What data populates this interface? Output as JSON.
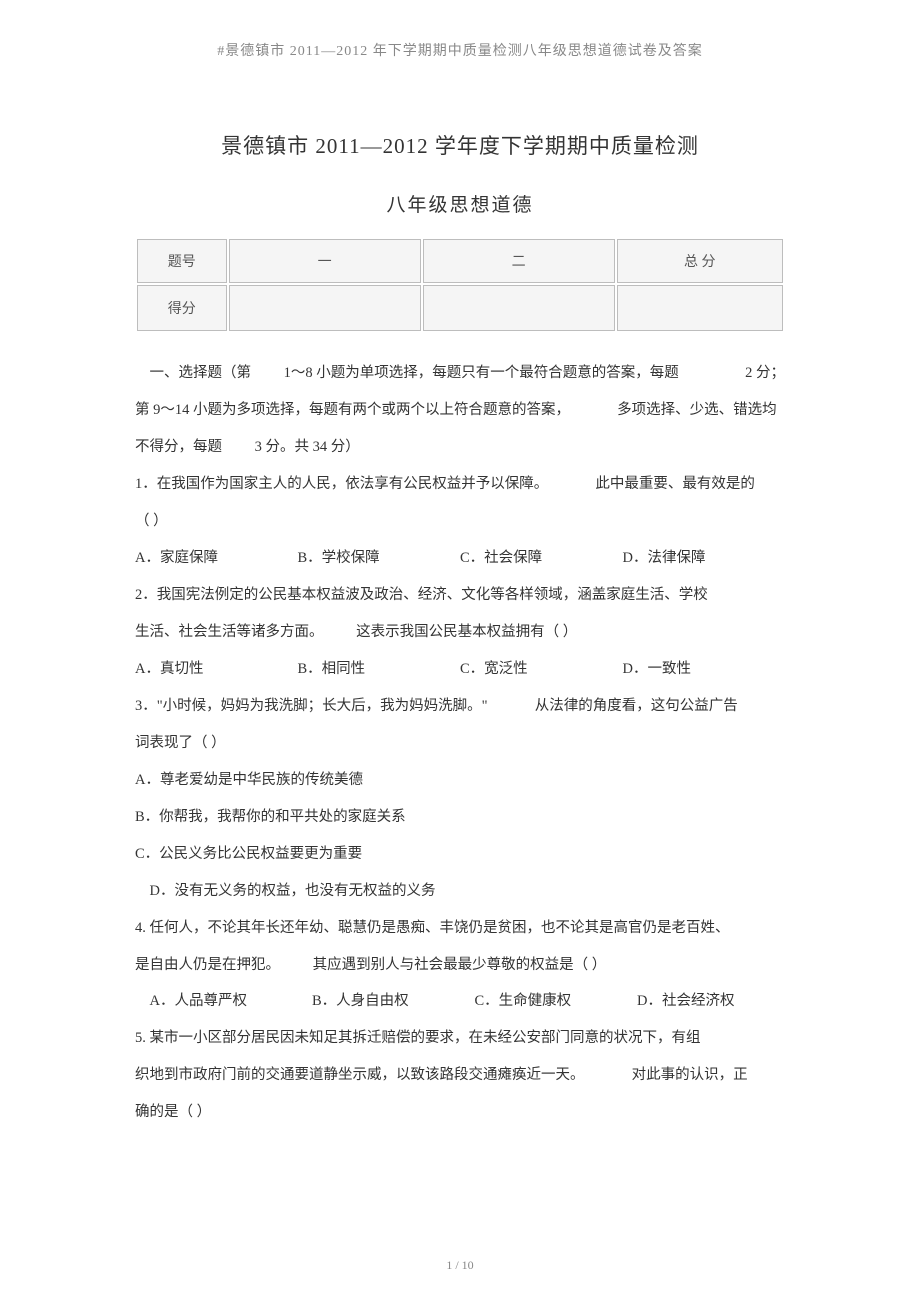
{
  "header": "#景德镇市 2011—2012 年下学期期中质量检测八年级思想道德试卷及答案",
  "title_line1": "景德镇市 2011—2012 学年度下学期期中质量检测",
  "title_line2": "八年级思想道德",
  "score_table": {
    "header": [
      "题号",
      "一",
      "二",
      "总 分"
    ],
    "row2_col0": "得分"
  },
  "instructions": {
    "l1a": "一、选择题（第",
    "l1b": "1～8 小题为单项选择，每题只有一个最符合题意的答案，每题",
    "l1c": "2 分；",
    "l2a": "第 9～14  小题为多项选择，每题有两个或两个以上符合题意的答案，",
    "l2b": "多项选择、少选、错选均",
    "l3a": "不得分，每题",
    "l3b": "3 分。共  34 分）"
  },
  "q1": {
    "stem_a": "1．在我国作为国家主人的人民，依法享有公民权益并予以保障。",
    "stem_b": "此中最重要、最有效是的",
    "paren": "（            ）",
    "opts": [
      "A．家庭保障",
      "B．学校保障",
      "C．社会保障",
      "D．法律保障"
    ]
  },
  "q2": {
    "l1": "2．我国宪法例定的公民基本权益波及政治、经济、文化等各样领域，涵盖家庭生活、学校",
    "l2a": "生活、社会生活等诸多方面。",
    "l2b": "这表示我国公民基本权益拥有（                ）",
    "opts": [
      "A．真切性",
      "B．相同性",
      "C．宽泛性",
      "D．一致性"
    ]
  },
  "q3": {
    "l1a": "3．\"小时候，妈妈为我洗脚；长大后，我为妈妈洗脚。\"",
    "l1b": "从法律的角度看，这句公益广告",
    "l2": "词表现了（            ）",
    "a": "A．尊老爱幼是中华民族的传统美德",
    "b": "B．你帮我，我帮你的和平共处的家庭关系",
    "c": "C．公民义务比公民权益要更为重要",
    "d": "D．没有无义务的权益，也没有无权益的义务"
  },
  "q4": {
    "l1": "4. 任何人，不论其年长还年幼、聪慧仍是愚痴、丰饶仍是贫困，也不论其是高官仍是老百姓、",
    "l2a": "是自由人仍是在押犯。",
    "l2b": "其应遇到别人与社会最最少尊敬的权益是（                    ）",
    "opts": [
      "A．人品尊严权",
      "B．人身自由权",
      "C．生命健康权",
      "D．社会经济权"
    ]
  },
  "q5": {
    "l1": "5. 某市一小区部分居民因未知足其拆迁赔偿的要求，在未经公安部门同意的状况下，有组",
    "l2a": "织地到市政府门前的交通要道静坐示威，以致该路段交通瘫痪近一天。",
    "l2b": "对此事的认识，正",
    "l3": "确的是（              ）"
  },
  "footer": "1 / 10"
}
